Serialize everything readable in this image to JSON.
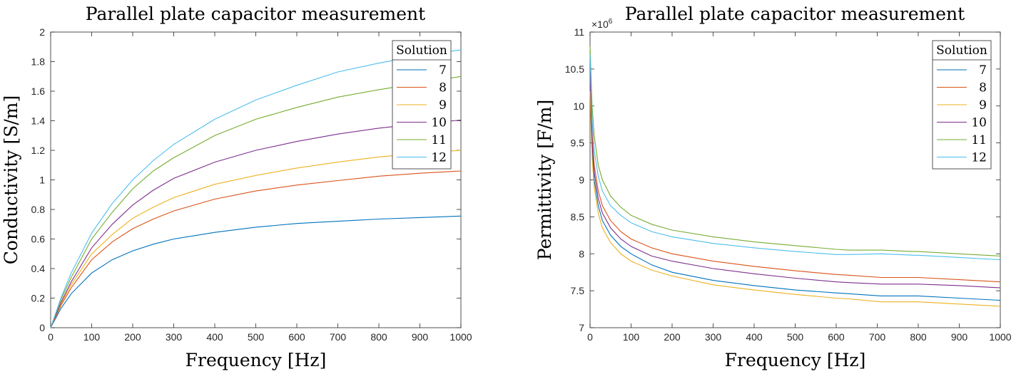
{
  "chart_data": [
    {
      "type": "line",
      "title": "Parallel plate capacitor measurement",
      "xlabel": "Frequency [Hz]",
      "ylabel": "Conductivity [S/m]",
      "xlim": [
        0,
        1000
      ],
      "ylim": [
        0,
        2
      ],
      "xticks": [
        0,
        100,
        200,
        300,
        400,
        500,
        600,
        700,
        800,
        900,
        1000
      ],
      "yticks": [
        0,
        0.2,
        0.4,
        0.6,
        0.8,
        1,
        1.2,
        1.4,
        1.6,
        1.8,
        2
      ],
      "grid": false,
      "legend": {
        "title": "Solution",
        "placement": "top-right"
      },
      "x": [
        0,
        25,
        50,
        100,
        150,
        200,
        250,
        300,
        400,
        500,
        600,
        700,
        800,
        900,
        1000
      ],
      "series": [
        {
          "name": "7",
          "color": "#0072BD",
          "values": [
            0,
            0.13,
            0.23,
            0.37,
            0.46,
            0.52,
            0.565,
            0.6,
            0.645,
            0.68,
            0.705,
            0.72,
            0.735,
            0.745,
            0.755
          ]
        },
        {
          "name": "8",
          "color": "#D95319",
          "values": [
            0,
            0.15,
            0.27,
            0.46,
            0.58,
            0.67,
            0.735,
            0.79,
            0.87,
            0.925,
            0.965,
            0.995,
            1.025,
            1.045,
            1.06
          ]
        },
        {
          "name": "9",
          "color": "#EDB120",
          "values": [
            0,
            0.16,
            0.29,
            0.5,
            0.63,
            0.74,
            0.815,
            0.88,
            0.97,
            1.03,
            1.08,
            1.12,
            1.155,
            1.18,
            1.2
          ]
        },
        {
          "name": "10",
          "color": "#7E2F8E",
          "values": [
            0,
            0.17,
            0.31,
            0.54,
            0.7,
            0.83,
            0.93,
            1.01,
            1.12,
            1.2,
            1.26,
            1.31,
            1.35,
            1.38,
            1.405
          ]
        },
        {
          "name": "11",
          "color": "#77AC30",
          "values": [
            0,
            0.19,
            0.34,
            0.6,
            0.78,
            0.94,
            1.06,
            1.15,
            1.3,
            1.41,
            1.49,
            1.56,
            1.61,
            1.655,
            1.7
          ]
        },
        {
          "name": "12",
          "color": "#4DBEEE",
          "values": [
            0,
            0.2,
            0.37,
            0.64,
            0.84,
            1.0,
            1.13,
            1.24,
            1.41,
            1.54,
            1.64,
            1.73,
            1.79,
            1.84,
            1.88
          ]
        }
      ]
    },
    {
      "type": "line",
      "title": "Parallel plate capacitor measurement",
      "xlabel": "Frequency [Hz]",
      "ylabel": "Permittivity [F/m]",
      "exponent_label": "×10",
      "exponent_value": "6",
      "xlim": [
        0,
        1000
      ],
      "ylim": [
        7,
        11
      ],
      "xticks": [
        0,
        100,
        200,
        300,
        400,
        500,
        600,
        700,
        800,
        900,
        1000
      ],
      "yticks": [
        7,
        7.5,
        8,
        8.5,
        9,
        9.5,
        10,
        10.5,
        11
      ],
      "grid": false,
      "legend": {
        "title": "Solution",
        "placement": "top-right"
      },
      "x": [
        0,
        5,
        10,
        20,
        30,
        50,
        75,
        100,
        150,
        200,
        300,
        400,
        500,
        600,
        630,
        710,
        790,
        800,
        900,
        1000
      ],
      "series": [
        {
          "name": "7",
          "color": "#0072BD",
          "values": [
            10.3,
            9.4,
            9.0,
            8.65,
            8.45,
            8.25,
            8.1,
            8.0,
            7.85,
            7.75,
            7.64,
            7.57,
            7.51,
            7.47,
            7.46,
            7.43,
            7.43,
            7.43,
            7.4,
            7.37
          ]
        },
        {
          "name": "8",
          "color": "#D95319",
          "values": [
            10.4,
            9.6,
            9.2,
            8.85,
            8.65,
            8.45,
            8.3,
            8.2,
            8.08,
            8.0,
            7.9,
            7.83,
            7.77,
            7.72,
            7.71,
            7.68,
            7.68,
            7.68,
            7.65,
            7.62
          ]
        },
        {
          "name": "9",
          "color": "#EDB120",
          "values": [
            10.2,
            9.3,
            8.9,
            8.55,
            8.35,
            8.15,
            8.0,
            7.9,
            7.78,
            7.7,
            7.58,
            7.51,
            7.45,
            7.4,
            7.39,
            7.35,
            7.35,
            7.35,
            7.32,
            7.29
          ]
        },
        {
          "name": "10",
          "color": "#7E2F8E",
          "values": [
            10.5,
            9.5,
            9.1,
            8.75,
            8.55,
            8.35,
            8.2,
            8.1,
            7.97,
            7.9,
            7.8,
            7.73,
            7.67,
            7.62,
            7.61,
            7.59,
            7.59,
            7.59,
            7.57,
            7.54
          ]
        },
        {
          "name": "11",
          "color": "#77AC30",
          "values": [
            10.8,
            10.0,
            9.6,
            9.2,
            9.0,
            8.78,
            8.63,
            8.52,
            8.4,
            8.32,
            8.23,
            8.16,
            8.11,
            8.06,
            8.05,
            8.05,
            8.03,
            8.03,
            8.0,
            7.97
          ]
        },
        {
          "name": "12",
          "color": "#4DBEEE",
          "values": [
            10.7,
            9.8,
            9.4,
            9.05,
            8.85,
            8.65,
            8.52,
            8.42,
            8.3,
            8.23,
            8.14,
            8.08,
            8.03,
            7.99,
            7.99,
            8.0,
            7.98,
            7.98,
            7.95,
            7.92
          ]
        }
      ]
    }
  ]
}
